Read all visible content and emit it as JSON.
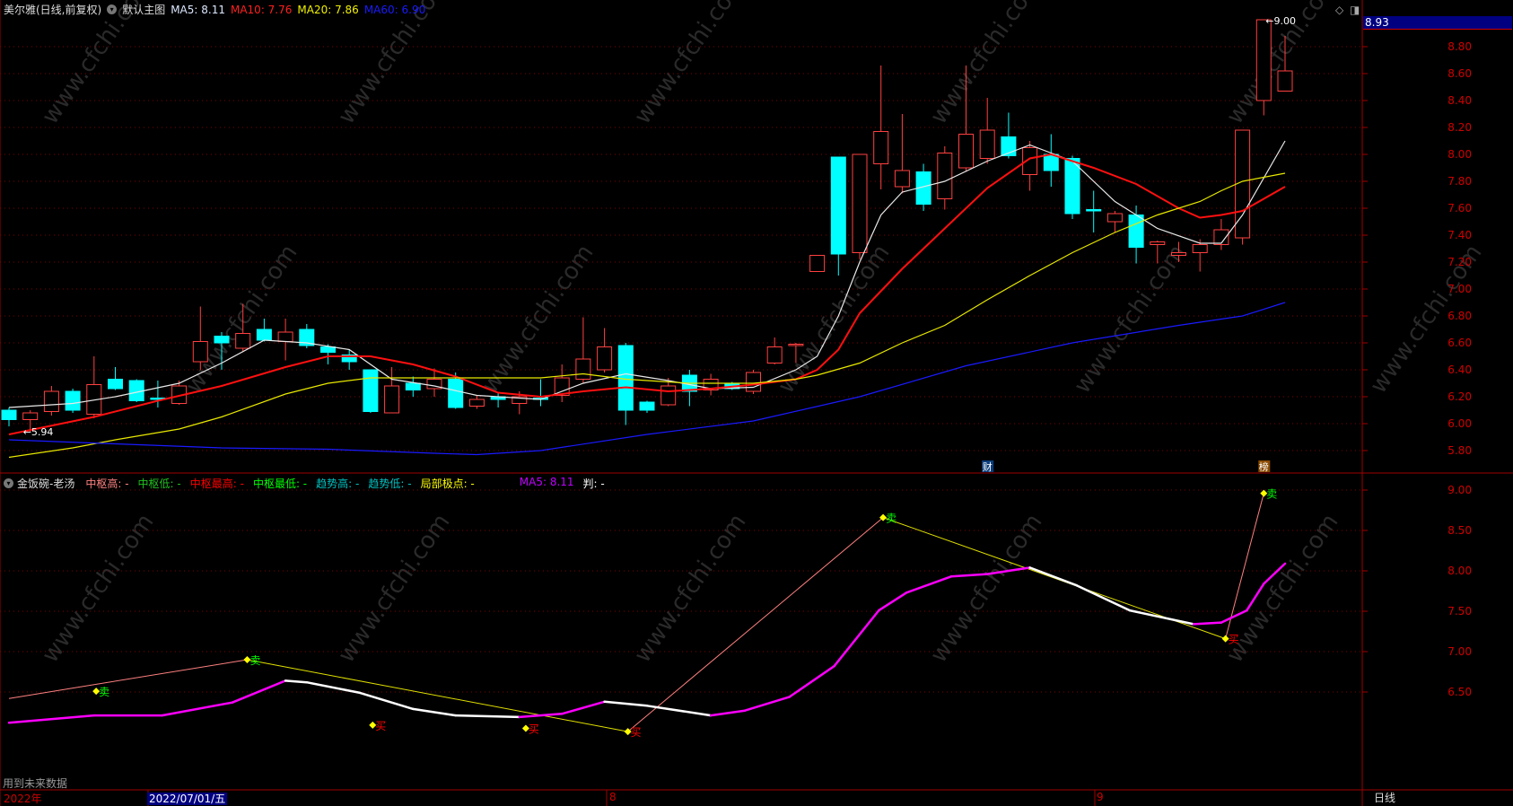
{
  "header": {
    "stock": "美尔雅(日线,前复权)",
    "template": "默认主图",
    "ma": [
      {
        "label": "MA5: 8.11",
        "color": "#dce8ff"
      },
      {
        "label": "MA10: 7.76",
        "color": "#ff2020"
      },
      {
        "label": "MA20: 7.86",
        "color": "#f0f000"
      },
      {
        "label": "MA60: 6.90",
        "color": "#1a1aff"
      }
    ],
    "current_price": "8.93",
    "icons": [
      "diamond-icon",
      "panel-toggle-icon"
    ]
  },
  "sub_header": {
    "title": "金饭碗-老汤",
    "items": [
      {
        "label": "中枢高: -",
        "color": "#ff8080"
      },
      {
        "label": "中枢低: -",
        "color": "#20c020"
      },
      {
        "label": "中枢最高: -",
        "color": "#ff0000"
      },
      {
        "label": "中枢最低: -",
        "color": "#00ff00"
      },
      {
        "label": "趋势高: -",
        "color": "#00c0c0"
      },
      {
        "label": "趋势低: -",
        "color": "#00c0c0"
      },
      {
        "label": "局部极点: -",
        "color": "#ffff00"
      },
      {
        "label": "MA5: 8.11",
        "color": "#c000ff"
      },
      {
        "label": "判: -",
        "color": "#ffffff"
      }
    ],
    "note": "用到未来数据"
  },
  "time_axis": {
    "labels": [
      "2022年",
      "2022/07/01/五",
      "8",
      "9"
    ],
    "period": "日线"
  },
  "watermark": "www.cfchi.com",
  "chart_data": [
    {
      "type": "candlestick",
      "yticks": [
        "8.80",
        "8.60",
        "8.40",
        "8.20",
        "8.00",
        "7.80",
        "7.60",
        "7.40",
        "7.20",
        "7.00",
        "6.80",
        "6.60",
        "6.40",
        "6.20",
        "6.00",
        "5.80"
      ],
      "ylim": [
        5.72,
        9.07
      ],
      "grid": true,
      "up_color": "#ff4040",
      "down_color": "#00ffff",
      "annotations": {
        "low": "5.94",
        "high": "9.00",
        "event_tags": [
          {
            "text": "财",
            "index": 46,
            "color": "#0a3d7a"
          },
          {
            "text": "榜",
            "index": 59,
            "color": "#8a4a00"
          }
        ]
      },
      "candles": [
        [
          6.1,
          6.12,
          5.98,
          6.03
        ],
        [
          6.03,
          6.1,
          5.94,
          6.08
        ],
        [
          6.09,
          6.28,
          6.06,
          6.24
        ],
        [
          6.24,
          6.26,
          6.08,
          6.1
        ],
        [
          6.07,
          6.5,
          6.04,
          6.29
        ],
        [
          6.33,
          6.42,
          6.25,
          6.26
        ],
        [
          6.32,
          6.33,
          6.16,
          6.17
        ],
        [
          6.19,
          6.32,
          6.12,
          6.18
        ],
        [
          6.15,
          6.32,
          6.14,
          6.28
        ],
        [
          6.46,
          6.87,
          6.4,
          6.61
        ],
        [
          6.65,
          6.68,
          6.4,
          6.6
        ],
        [
          6.56,
          6.89,
          6.53,
          6.67
        ],
        [
          6.7,
          6.78,
          6.61,
          6.62
        ],
        [
          6.61,
          6.78,
          6.47,
          6.68
        ],
        [
          6.7,
          6.74,
          6.56,
          6.58
        ],
        [
          6.57,
          6.59,
          6.44,
          6.53
        ],
        [
          6.51,
          6.55,
          6.4,
          6.46
        ],
        [
          6.4,
          6.4,
          6.08,
          6.09
        ],
        [
          6.08,
          6.42,
          6.08,
          6.28
        ],
        [
          6.3,
          6.35,
          6.2,
          6.25
        ],
        [
          6.26,
          6.41,
          6.2,
          6.33
        ],
        [
          6.33,
          6.38,
          6.11,
          6.12
        ],
        [
          6.13,
          6.21,
          6.11,
          6.18
        ],
        [
          6.2,
          6.23,
          6.12,
          6.18
        ],
        [
          6.15,
          6.24,
          6.07,
          6.2
        ],
        [
          6.19,
          6.33,
          6.13,
          6.18
        ],
        [
          6.21,
          6.44,
          6.16,
          6.34
        ],
        [
          6.33,
          6.79,
          6.3,
          6.48
        ],
        [
          6.4,
          6.71,
          6.38,
          6.57
        ],
        [
          6.58,
          6.6,
          5.99,
          6.1
        ],
        [
          6.16,
          6.17,
          6.08,
          6.1
        ],
        [
          6.14,
          6.34,
          6.13,
          6.28
        ],
        [
          6.36,
          6.4,
          6.13,
          6.24
        ],
        [
          6.25,
          6.37,
          6.21,
          6.33
        ],
        [
          6.3,
          6.31,
          6.25,
          6.26
        ],
        [
          6.24,
          6.4,
          6.22,
          6.38
        ],
        [
          6.45,
          6.64,
          6.44,
          6.57
        ],
        [
          6.58,
          6.6,
          6.45,
          6.59
        ],
        [
          7.13,
          7.25,
          7.13,
          7.25
        ],
        [
          7.98,
          7.98,
          7.1,
          7.26
        ],
        [
          7.27,
          8.0,
          7.22,
          8.0
        ],
        [
          7.93,
          8.66,
          7.74,
          8.17
        ],
        [
          7.76,
          8.3,
          7.71,
          7.88
        ],
        [
          7.87,
          7.93,
          7.58,
          7.63
        ],
        [
          7.67,
          8.06,
          7.59,
          8.01
        ],
        [
          7.9,
          8.66,
          7.87,
          8.15
        ],
        [
          7.97,
          8.42,
          7.93,
          8.18
        ],
        [
          8.13,
          8.31,
          7.97,
          7.99
        ],
        [
          7.85,
          8.1,
          7.73,
          8.05
        ],
        [
          8.0,
          8.15,
          7.76,
          7.88
        ],
        [
          7.97,
          7.99,
          7.52,
          7.56
        ],
        [
          7.59,
          7.73,
          7.42,
          7.58
        ],
        [
          7.5,
          7.58,
          7.42,
          7.56
        ],
        [
          7.55,
          7.62,
          7.19,
          7.31
        ],
        [
          7.33,
          7.36,
          7.19,
          7.35
        ],
        [
          7.25,
          7.35,
          7.2,
          7.27
        ],
        [
          7.27,
          7.37,
          7.13,
          7.33
        ],
        [
          7.33,
          7.52,
          7.29,
          7.44
        ],
        [
          7.38,
          8.18,
          7.33,
          8.18
        ],
        [
          8.4,
          9.0,
          8.29,
          9.0
        ],
        [
          8.47,
          8.88,
          8.47,
          8.62
        ]
      ],
      "ma_lines": [
        {
          "name": "MA5",
          "color": "#e8e8e8",
          "points": [
            [
              0,
              6.12
            ],
            [
              3,
              6.15
            ],
            [
              5,
              6.2
            ],
            [
              8,
              6.3
            ],
            [
              10,
              6.45
            ],
            [
              12,
              6.62
            ],
            [
              14,
              6.6
            ],
            [
              16,
              6.55
            ],
            [
              18,
              6.33
            ],
            [
              20,
              6.28
            ],
            [
              22,
              6.21
            ],
            [
              25,
              6.18
            ],
            [
              27,
              6.3
            ],
            [
              29,
              6.37
            ],
            [
              31,
              6.32
            ],
            [
              33,
              6.26
            ],
            [
              35,
              6.27
            ],
            [
              37,
              6.4
            ],
            [
              38,
              6.5
            ],
            [
              39,
              6.8
            ],
            [
              40,
              7.2
            ],
            [
              41,
              7.55
            ],
            [
              42,
              7.72
            ],
            [
              44,
              7.8
            ],
            [
              46,
              7.95
            ],
            [
              48,
              8.07
            ],
            [
              50,
              7.95
            ],
            [
              52,
              7.65
            ],
            [
              54,
              7.45
            ],
            [
              56,
              7.34
            ],
            [
              57,
              7.34
            ],
            [
              58,
              7.55
            ],
            [
              60,
              8.1
            ]
          ]
        },
        {
          "name": "MA10",
          "color": "#ff1010",
          "points": [
            [
              0,
              5.92
            ],
            [
              4,
              6.05
            ],
            [
              7,
              6.17
            ],
            [
              10,
              6.28
            ],
            [
              13,
              6.42
            ],
            [
              15,
              6.5
            ],
            [
              17,
              6.5
            ],
            [
              19,
              6.44
            ],
            [
              21,
              6.35
            ],
            [
              23,
              6.23
            ],
            [
              25,
              6.2
            ],
            [
              27,
              6.24
            ],
            [
              29,
              6.27
            ],
            [
              31,
              6.24
            ],
            [
              33,
              6.26
            ],
            [
              35,
              6.29
            ],
            [
              37,
              6.33
            ],
            [
              38,
              6.4
            ],
            [
              39,
              6.55
            ],
            [
              40,
              6.82
            ],
            [
              42,
              7.15
            ],
            [
              44,
              7.45
            ],
            [
              46,
              7.75
            ],
            [
              48,
              7.97
            ],
            [
              49,
              8.0
            ],
            [
              51,
              7.9
            ],
            [
              53,
              7.78
            ],
            [
              55,
              7.6
            ],
            [
              56,
              7.53
            ],
            [
              57,
              7.55
            ],
            [
              58,
              7.58
            ],
            [
              60,
              7.76
            ]
          ]
        },
        {
          "name": "MA20",
          "color": "#e8e800",
          "points": [
            [
              0,
              5.75
            ],
            [
              3,
              5.82
            ],
            [
              5,
              5.88
            ],
            [
              8,
              5.96
            ],
            [
              10,
              6.05
            ],
            [
              13,
              6.22
            ],
            [
              15,
              6.3
            ],
            [
              17,
              6.34
            ],
            [
              20,
              6.34
            ],
            [
              25,
              6.34
            ],
            [
              27,
              6.37
            ],
            [
              29,
              6.33
            ],
            [
              32,
              6.3
            ],
            [
              35,
              6.3
            ],
            [
              37,
              6.33
            ],
            [
              38,
              6.36
            ],
            [
              40,
              6.45
            ],
            [
              42,
              6.6
            ],
            [
              44,
              6.73
            ],
            [
              46,
              6.92
            ],
            [
              48,
              7.1
            ],
            [
              50,
              7.27
            ],
            [
              52,
              7.42
            ],
            [
              54,
              7.55
            ],
            [
              56,
              7.65
            ],
            [
              57,
              7.73
            ],
            [
              58,
              7.8
            ],
            [
              60,
              7.86
            ]
          ]
        },
        {
          "name": "MA60",
          "color": "#1a1aff",
          "points": [
            [
              0,
              5.88
            ],
            [
              5,
              5.85
            ],
            [
              10,
              5.82
            ],
            [
              15,
              5.81
            ],
            [
              20,
              5.78
            ],
            [
              22,
              5.77
            ],
            [
              25,
              5.8
            ],
            [
              30,
              5.92
            ],
            [
              35,
              6.02
            ],
            [
              40,
              6.2
            ],
            [
              45,
              6.43
            ],
            [
              50,
              6.6
            ],
            [
              55,
              6.73
            ],
            [
              58,
              6.8
            ],
            [
              60,
              6.9
            ]
          ]
        }
      ]
    },
    {
      "type": "line",
      "yticks": [
        "9.00",
        "8.50",
        "8.00",
        "7.50",
        "7.00",
        "6.50"
      ],
      "ylim": [
        6.0,
        9.2
      ],
      "grid": true,
      "ma5_line": {
        "rising_color": "#ff00ff",
        "falling_color": "#ffffff",
        "points": [
          [
            0,
            6.12
          ],
          [
            4,
            6.21
          ],
          [
            7.2,
            6.21
          ],
          [
            10.5,
            6.37
          ],
          [
            13,
            6.64
          ],
          [
            14,
            6.62
          ],
          [
            16.5,
            6.49
          ],
          [
            19,
            6.29
          ],
          [
            21,
            6.21
          ],
          [
            24,
            6.19
          ],
          [
            26,
            6.23
          ],
          [
            28,
            6.38
          ],
          [
            30,
            6.33
          ],
          [
            33,
            6.21
          ],
          [
            34.6,
            6.27
          ],
          [
            36.7,
            6.44
          ],
          [
            38.8,
            6.82
          ],
          [
            40.9,
            7.51
          ],
          [
            42.2,
            7.73
          ],
          [
            44.3,
            7.93
          ],
          [
            46,
            7.96
          ],
          [
            48,
            8.04
          ],
          [
            50.2,
            7.82
          ],
          [
            52.7,
            7.51
          ],
          [
            55.7,
            7.34
          ],
          [
            57,
            7.36
          ],
          [
            58.2,
            7.51
          ],
          [
            59,
            7.84
          ],
          [
            60,
            8.09
          ]
        ]
      },
      "zigzag": [
        {
          "from": [
            0,
            6.42
          ],
          "to": [
            11.2,
            6.9
          ],
          "color": "#ff8080"
        },
        {
          "from": [
            11.2,
            6.9
          ],
          "to": [
            29.1,
            6.01
          ],
          "color": "#e0e000"
        },
        {
          "from": [
            29.1,
            6.01
          ],
          "to": [
            41.1,
            8.66
          ],
          "color": "#ff8080"
        },
        {
          "from": [
            41.1,
            8.66
          ],
          "to": [
            57.2,
            7.16
          ],
          "color": "#e0e000"
        },
        {
          "from": [
            57.2,
            7.16
          ],
          "to": [
            59,
            8.96
          ],
          "color": "#ff8080"
        }
      ],
      "signals": [
        {
          "text": "卖",
          "index": 4.1,
          "value": 6.51,
          "color": "#00ff00"
        },
        {
          "text": "卖",
          "index": 11.2,
          "value": 6.9,
          "color": "#00ff00"
        },
        {
          "text": "买",
          "index": 17.1,
          "value": 6.09,
          "color": "#ff0000"
        },
        {
          "text": "买",
          "index": 24.3,
          "value": 6.05,
          "color": "#ff0000"
        },
        {
          "text": "买",
          "index": 29.1,
          "value": 6.01,
          "color": "#ff0000"
        },
        {
          "text": "卖",
          "index": 41.1,
          "value": 8.66,
          "color": "#00ff00"
        },
        {
          "text": "买",
          "index": 57.2,
          "value": 7.16,
          "color": "#ff0000"
        },
        {
          "text": "卖",
          "index": 59,
          "value": 8.96,
          "color": "#00ff00"
        }
      ]
    }
  ]
}
